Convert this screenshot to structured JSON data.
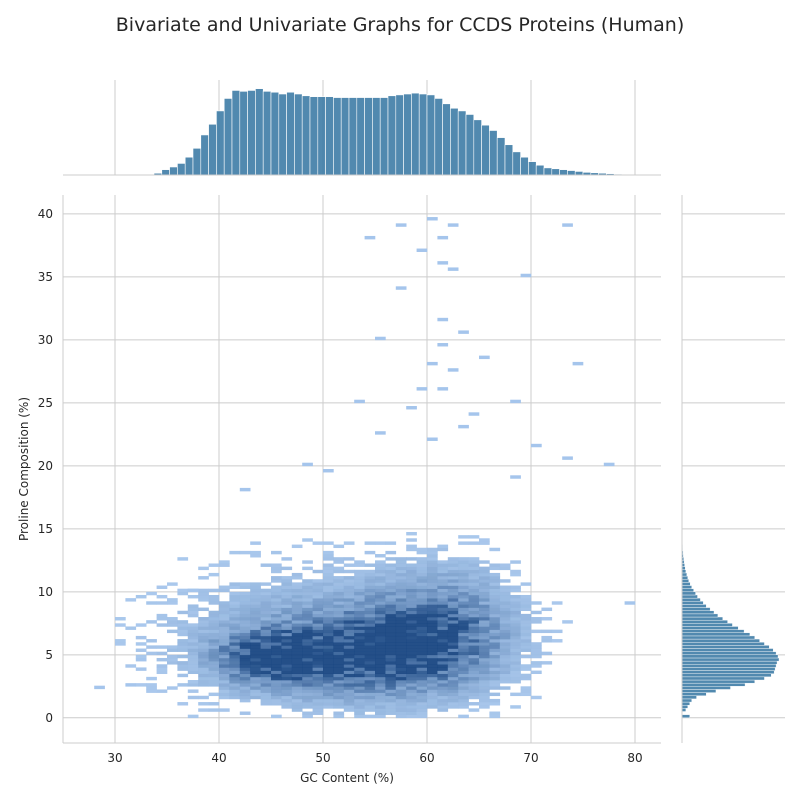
{
  "chart_data": {
    "type": "heatmap",
    "title": "Bivariate and Univariate Graphs for CCDS Proteins (Human)",
    "xlabel": "GC Content (%)",
    "ylabel": "Proline Composition (%)",
    "xlim": [
      25,
      82.5
    ],
    "ylim": [
      -2,
      41.5
    ],
    "x_ticks": [
      30,
      40,
      50,
      60,
      70,
      80
    ],
    "y_ticks": [
      0,
      5,
      10,
      15,
      20,
      25,
      30,
      35,
      40
    ],
    "grid": true,
    "color": "#3274a1",
    "joint_bin_size": {
      "x": 1.0,
      "y": 0.25
    },
    "joint_cores": [
      {
        "x": 45,
        "y": 4.8,
        "sx": 3.0,
        "sy": 1.2,
        "peak": 1.0
      },
      {
        "x": 52,
        "y": 5.0,
        "sx": 6.0,
        "sy": 1.8,
        "peak": 0.75
      },
      {
        "x": 58,
        "y": 5.8,
        "sx": 4.5,
        "sy": 2.2,
        "peak": 0.7
      },
      {
        "x": 62,
        "y": 7.5,
        "sx": 4.0,
        "sy": 2.8,
        "peak": 0.45
      },
      {
        "x": 50,
        "y": 6.5,
        "sx": 9.0,
        "sy": 3.5,
        "peak": 0.25
      }
    ],
    "joint_outliers": [
      [
        60,
        39.5
      ],
      [
        57,
        39.0
      ],
      [
        62,
        39.0
      ],
      [
        73,
        39.0
      ],
      [
        61,
        38.0
      ],
      [
        54,
        38.0
      ],
      [
        59,
        37.0
      ],
      [
        61,
        36.0
      ],
      [
        62,
        35.5
      ],
      [
        69,
        35.0
      ],
      [
        57,
        34.0
      ],
      [
        61,
        31.5
      ],
      [
        63,
        30.5
      ],
      [
        55,
        30.0
      ],
      [
        61,
        29.5
      ],
      [
        65,
        28.5
      ],
      [
        60,
        28.0
      ],
      [
        62,
        27.5
      ],
      [
        74,
        28.0
      ],
      [
        59,
        26.0
      ],
      [
        61,
        26.0
      ],
      [
        53,
        25.0
      ],
      [
        64,
        24.0
      ],
      [
        58,
        24.5
      ],
      [
        68,
        25.0
      ],
      [
        63,
        23.0
      ],
      [
        55,
        22.5
      ],
      [
        60,
        22.0
      ],
      [
        70,
        21.5
      ],
      [
        48,
        20.0
      ],
      [
        50,
        19.5
      ],
      [
        73,
        20.5
      ],
      [
        77,
        20.0
      ],
      [
        42,
        18.0
      ],
      [
        68,
        19.0
      ],
      [
        28,
        2.3
      ],
      [
        31,
        2.5
      ],
      [
        32,
        4.5
      ],
      [
        37,
        10.0
      ],
      [
        79,
        9.0
      ]
    ],
    "x_marginal": {
      "bin_edges_start": 33,
      "bin_width": 0.75,
      "density": [
        0.005,
        0.02,
        0.06,
        0.09,
        0.13,
        0.2,
        0.3,
        0.45,
        0.57,
        0.72,
        0.86,
        0.95,
        0.94,
        0.95,
        0.97,
        0.94,
        0.93,
        0.91,
        0.93,
        0.91,
        0.89,
        0.88,
        0.88,
        0.88,
        0.87,
        0.87,
        0.87,
        0.87,
        0.87,
        0.87,
        0.87,
        0.89,
        0.9,
        0.91,
        0.92,
        0.91,
        0.9,
        0.86,
        0.8,
        0.75,
        0.72,
        0.68,
        0.62,
        0.56,
        0.5,
        0.42,
        0.34,
        0.26,
        0.2,
        0.15,
        0.11,
        0.08,
        0.07,
        0.06,
        0.05,
        0.04,
        0.03,
        0.025,
        0.02,
        0.015,
        0.01
      ]
    },
    "y_marginal": {
      "bin_edges_start": 0,
      "bin_width": 0.25,
      "density": [
        0.08,
        0.0,
        0.04,
        0.06,
        0.08,
        0.1,
        0.15,
        0.25,
        0.35,
        0.5,
        0.65,
        0.75,
        0.85,
        0.92,
        0.95,
        0.96,
        0.97,
        0.98,
        1.0,
        0.99,
        0.97,
        0.94,
        0.9,
        0.85,
        0.8,
        0.75,
        0.7,
        0.64,
        0.58,
        0.52,
        0.47,
        0.42,
        0.37,
        0.33,
        0.29,
        0.25,
        0.22,
        0.19,
        0.16,
        0.14,
        0.12,
        0.1,
        0.085,
        0.07,
        0.06,
        0.05,
        0.04,
        0.033,
        0.027,
        0.022,
        0.018,
        0.014,
        0.011,
        0.008,
        0.006,
        0.005,
        0.004,
        0.003,
        0.002,
        0.0015,
        0.001
      ]
    }
  }
}
